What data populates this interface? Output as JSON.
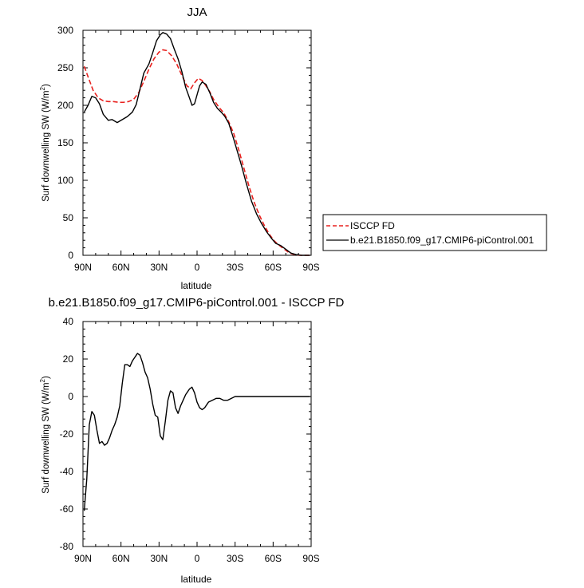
{
  "chart_data": [
    {
      "type": "line",
      "title": "JJA",
      "xlabel": "latitude",
      "ylabel": "Surf downwelling SW (W/m",
      "ylabel_sup": "2",
      "ylabel_end": ")",
      "xlim": [
        90,
        -90
      ],
      "ylim": [
        0,
        300
      ],
      "x_ticks": [
        90,
        60,
        30,
        0,
        -30,
        -60,
        -90
      ],
      "x_tick_labels": [
        "90N",
        "60N",
        "30N",
        "0",
        "30S",
        "60S",
        "90S"
      ],
      "y_ticks": [
        0,
        50,
        100,
        150,
        200,
        250,
        300
      ],
      "y_tick_labels": [
        "0",
        "50",
        "100",
        "150",
        "200",
        "250",
        "300"
      ],
      "legend_position": "right",
      "series": [
        {
          "name": "ISCCP FD",
          "color": "#e8211e",
          "dash": "dashed",
          "points": [
            [
              89,
              252
            ],
            [
              86,
              238
            ],
            [
              82,
              220
            ],
            [
              78,
              210
            ],
            [
              74,
              206
            ],
            [
              70,
              205
            ],
            [
              66,
              205
            ],
            [
              62,
              204
            ],
            [
              58,
              204
            ],
            [
              54,
              205
            ],
            [
              50,
              208
            ],
            [
              46,
              217
            ],
            [
              42,
              232
            ],
            [
              38,
              248
            ],
            [
              34,
              262
            ],
            [
              30,
              271
            ],
            [
              27,
              274
            ],
            [
              24,
              273
            ],
            [
              20,
              266
            ],
            [
              16,
              255
            ],
            [
              12,
              240
            ],
            [
              8,
              226
            ],
            [
              5,
              222
            ],
            [
              2,
              230
            ],
            [
              -1,
              236
            ],
            [
              -4,
              233
            ],
            [
              -7,
              226
            ],
            [
              -10,
              218
            ],
            [
              -13,
              208
            ],
            [
              -17,
              198
            ],
            [
              -21,
              190
            ],
            [
              -25,
              178
            ],
            [
              -29,
              162
            ],
            [
              -33,
              140
            ],
            [
              -37,
              116
            ],
            [
              -41,
              92
            ],
            [
              -45,
              71
            ],
            [
              -49,
              54
            ],
            [
              -53,
              40
            ],
            [
              -57,
              28
            ],
            [
              -61,
              19
            ],
            [
              -65,
              13
            ],
            [
              -69,
              8
            ],
            [
              -73,
              3
            ],
            [
              -77,
              1
            ],
            [
              -81,
              0
            ],
            [
              -85,
              0
            ],
            [
              -89,
              0
            ]
          ]
        },
        {
          "name": "b.e21.B1850.f09_g17.CMIP6-piControl.001",
          "color": "#000000",
          "dash": "solid",
          "points": [
            [
              89,
              191
            ],
            [
              86,
              200
            ],
            [
              83,
              212
            ],
            [
              80,
              210
            ],
            [
              77,
              202
            ],
            [
              74,
              188
            ],
            [
              70,
              180
            ],
            [
              67,
              181
            ],
            [
              63,
              177
            ],
            [
              59,
              181
            ],
            [
              55,
              185
            ],
            [
              51,
              191
            ],
            [
              48,
              201
            ],
            [
              45,
              222
            ],
            [
              42,
              243
            ],
            [
              38,
              255
            ],
            [
              35,
              270
            ],
            [
              32,
              286
            ],
            [
              29,
              294
            ],
            [
              27,
              297
            ],
            [
              24,
              295
            ],
            [
              21,
              289
            ],
            [
              18,
              275
            ],
            [
              15,
              262
            ],
            [
              12,
              245
            ],
            [
              9,
              224
            ],
            [
              6,
              210
            ],
            [
              4,
              200
            ],
            [
              2,
              202
            ],
            [
              0,
              214
            ],
            [
              -2,
              226
            ],
            [
              -4,
              231
            ],
            [
              -7,
              228
            ],
            [
              -10,
              217
            ],
            [
              -13,
              204
            ],
            [
              -16,
              196
            ],
            [
              -19,
              191
            ],
            [
              -22,
              185
            ],
            [
              -25,
              176
            ],
            [
              -28,
              160
            ],
            [
              -31,
              143
            ],
            [
              -35,
              120
            ],
            [
              -39,
              95
            ],
            [
              -43,
              72
            ],
            [
              -47,
              55
            ],
            [
              -51,
              42
            ],
            [
              -55,
              31
            ],
            [
              -59,
              22
            ],
            [
              -62,
              16
            ],
            [
              -66,
              13
            ],
            [
              -70,
              8
            ],
            [
              -74,
              3
            ],
            [
              -78,
              1
            ],
            [
              -82,
              0
            ],
            [
              -86,
              0
            ],
            [
              -89,
              0
            ]
          ]
        }
      ]
    },
    {
      "type": "line",
      "title": "b.e21.B1850.f09_g17.CMIP6-piControl.001 - ISCCP FD",
      "xlabel": "latitude",
      "ylabel": "Surf downwelling SW (W/m",
      "ylabel_sup": "2",
      "ylabel_end": ")",
      "xlim": [
        90,
        -90
      ],
      "ylim": [
        -80,
        40
      ],
      "x_ticks": [
        90,
        60,
        30,
        0,
        -30,
        -60,
        -90
      ],
      "x_tick_labels": [
        "90N",
        "60N",
        "30N",
        "0",
        "30S",
        "60S",
        "90S"
      ],
      "y_ticks": [
        -80,
        -60,
        -40,
        -20,
        0,
        20,
        40
      ],
      "y_tick_labels": [
        "-80",
        "-60",
        "-40",
        "-20",
        "0",
        "20",
        "40"
      ],
      "series": [
        {
          "color": "#000000",
          "dash": "solid",
          "points": [
            [
              89,
              -61
            ],
            [
              87,
              -44
            ],
            [
              85,
              -15
            ],
            [
              83,
              -8
            ],
            [
              81,
              -10
            ],
            [
              79,
              -18
            ],
            [
              77,
              -25
            ],
            [
              75,
              -24
            ],
            [
              73,
              -26
            ],
            [
              71,
              -25
            ],
            [
              69,
              -22
            ],
            [
              67,
              -18
            ],
            [
              65,
              -15
            ],
            [
              63,
              -11
            ],
            [
              61,
              -5
            ],
            [
              59,
              7
            ],
            [
              57,
              17
            ],
            [
              55,
              17
            ],
            [
              53,
              16
            ],
            [
              51,
              19
            ],
            [
              49,
              21
            ],
            [
              47,
              23
            ],
            [
              45,
              22
            ],
            [
              43,
              18
            ],
            [
              41,
              13
            ],
            [
              39,
              10
            ],
            [
              37,
              4
            ],
            [
              35,
              -4
            ],
            [
              33,
              -10
            ],
            [
              31,
              -11
            ],
            [
              29,
              -21
            ],
            [
              27,
              -23
            ],
            [
              25,
              -13
            ],
            [
              23,
              -2
            ],
            [
              21,
              3
            ],
            [
              19,
              2
            ],
            [
              17,
              -6
            ],
            [
              15,
              -9
            ],
            [
              13,
              -5
            ],
            [
              11,
              -2
            ],
            [
              9,
              1
            ],
            [
              6,
              4
            ],
            [
              4,
              5
            ],
            [
              2,
              2
            ],
            [
              0,
              -3
            ],
            [
              -2,
              -6
            ],
            [
              -4,
              -7
            ],
            [
              -6,
              -6
            ],
            [
              -9,
              -3
            ],
            [
              -12,
              -2
            ],
            [
              -15,
              -1
            ],
            [
              -18,
              -1
            ],
            [
              -21,
              -2
            ],
            [
              -24,
              -2
            ],
            [
              -27,
              -1
            ],
            [
              -30,
              0
            ],
            [
              -40,
              0
            ],
            [
              -50,
              0
            ],
            [
              -60,
              0
            ],
            [
              -70,
              0
            ],
            [
              -80,
              0
            ],
            [
              -89,
              0
            ]
          ]
        }
      ]
    }
  ]
}
